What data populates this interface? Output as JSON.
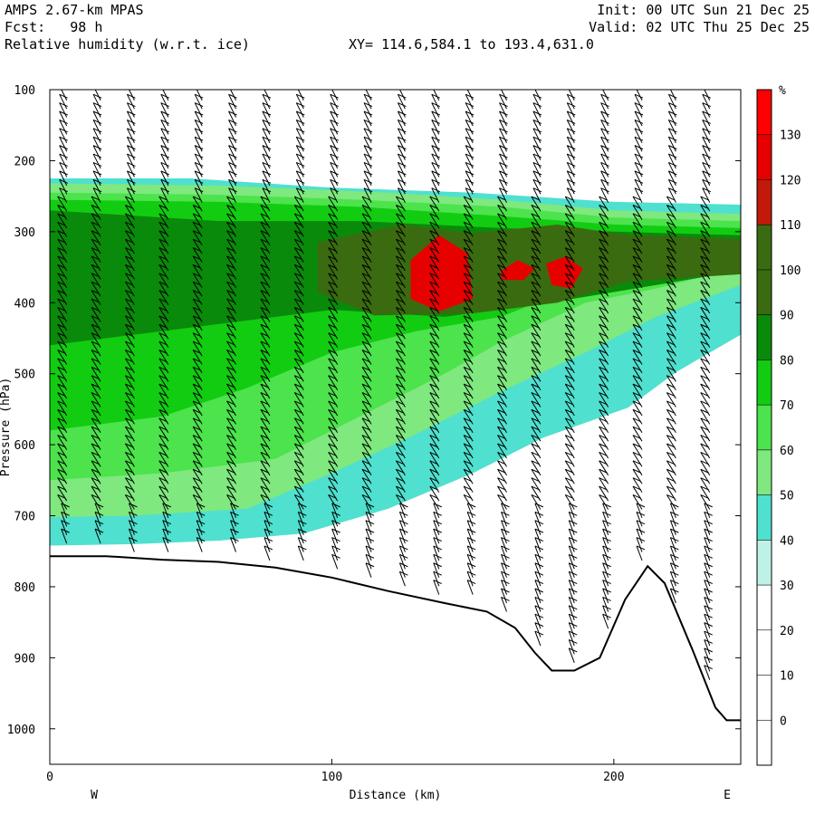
{
  "header": {
    "model": "AMPS 2.67-km MPAS",
    "fcst": "Fcst:   98 h",
    "field": "Relative humidity (w.r.t. ice)",
    "xy": "XY= 114.6,584.1 to 193.4,631.0",
    "init": "Init: 00 UTC Sun 21 Dec 25",
    "valid": "Valid: 02 UTC Thu 25 Dec 25"
  },
  "chart_data": {
    "type": "heatmap",
    "title": "Relative humidity (w.r.t. ice)",
    "xlabel": "Distance (km)",
    "ylabel": "Pressure (hPa)",
    "xlim": [
      0,
      245
    ],
    "ylim": [
      1050,
      100
    ],
    "x_ticks": [
      0,
      100,
      200
    ],
    "y_ticks": [
      100,
      200,
      300,
      400,
      500,
      600,
      700,
      800,
      900,
      1000
    ],
    "x_end_labels": {
      "left": "W",
      "right": "E"
    },
    "colorbar": {
      "unit": "%",
      "levels": [
        0,
        10,
        20,
        30,
        40,
        50,
        60,
        70,
        80,
        90,
        100,
        110,
        120,
        130
      ],
      "colors": [
        "#ffffff",
        "#ffffff",
        "#ffffff",
        "#ffffff",
        "#bff2e6",
        "#4fe0cf",
        "#7fe87f",
        "#4ce34c",
        "#12cc12",
        "#0a8a0a",
        "#3b6b10",
        "#3b6b10",
        "#c21a0a",
        "#e60000",
        "#ff0000"
      ]
    },
    "terrain_pressure_hPa": [
      [
        0,
        757
      ],
      [
        20,
        757
      ],
      [
        40,
        762
      ],
      [
        60,
        765
      ],
      [
        80,
        773
      ],
      [
        100,
        787
      ],
      [
        120,
        806
      ],
      [
        140,
        823
      ],
      [
        155,
        835
      ],
      [
        165,
        858
      ],
      [
        172,
        893
      ],
      [
        178,
        918
      ],
      [
        186,
        918
      ],
      [
        195,
        900
      ],
      [
        204,
        818
      ],
      [
        212,
        771
      ],
      [
        218,
        795
      ],
      [
        228,
        890
      ],
      [
        236,
        970
      ],
      [
        240,
        988
      ],
      [
        245,
        988
      ]
    ],
    "rh_layers": [
      {
        "level": 40,
        "polygon": [
          [
            0,
            225
          ],
          [
            50,
            225
          ],
          [
            100,
            238
          ],
          [
            150,
            245
          ],
          [
            200,
            258
          ],
          [
            245,
            262
          ],
          [
            245,
            445
          ],
          [
            222,
            498
          ],
          [
            205,
            548
          ],
          [
            175,
            590
          ],
          [
            150,
            640
          ],
          [
            120,
            690
          ],
          [
            90,
            725
          ],
          [
            60,
            735
          ],
          [
            30,
            740
          ],
          [
            0,
            742
          ]
        ]
      },
      {
        "level": 50,
        "polygon": [
          [
            0,
            232
          ],
          [
            60,
            235
          ],
          [
            120,
            245
          ],
          [
            160,
            255
          ],
          [
            200,
            270
          ],
          [
            245,
            275
          ],
          [
            245,
            375
          ],
          [
            215,
            420
          ],
          [
            190,
            470
          ],
          [
            160,
            525
          ],
          [
            130,
            585
          ],
          [
            100,
            640
          ],
          [
            70,
            690
          ],
          [
            30,
            700
          ],
          [
            0,
            702
          ]
        ]
      },
      {
        "level": 60,
        "polygon": [
          [
            0,
            245
          ],
          [
            60,
            248
          ],
          [
            110,
            255
          ],
          [
            160,
            265
          ],
          [
            200,
            280
          ],
          [
            245,
            285
          ],
          [
            245,
            350
          ],
          [
            215,
            380
          ],
          [
            190,
            400
          ],
          [
            160,
            455
          ],
          [
            140,
            500
          ],
          [
            110,
            560
          ],
          [
            80,
            620
          ],
          [
            40,
            640
          ],
          [
            0,
            650
          ]
        ]
      },
      {
        "level": 70,
        "polygon": [
          [
            0,
            255
          ],
          [
            60,
            258
          ],
          [
            110,
            265
          ],
          [
            160,
            278
          ],
          [
            200,
            290
          ],
          [
            245,
            295
          ],
          [
            245,
            340
          ],
          [
            215,
            360
          ],
          [
            185,
            380
          ],
          [
            160,
            420
          ],
          [
            130,
            440
          ],
          [
            100,
            470
          ],
          [
            70,
            520
          ],
          [
            40,
            560
          ],
          [
            0,
            580
          ]
        ]
      },
      {
        "level": 80,
        "polygon": [
          [
            0,
            270
          ],
          [
            60,
            285
          ],
          [
            110,
            285
          ],
          [
            160,
            295
          ],
          [
            200,
            300
          ],
          [
            245,
            305
          ],
          [
            245,
            355
          ],
          [
            215,
            375
          ],
          [
            185,
            395
          ],
          [
            140,
            420
          ],
          [
            100,
            410
          ],
          [
            60,
            430
          ],
          [
            20,
            450
          ],
          [
            0,
            460
          ]
        ]
      },
      {
        "level": 90,
        "polygon": [
          [
            95,
            315
          ],
          [
            125,
            290
          ],
          [
            150,
            302
          ],
          [
            180,
            290
          ],
          [
            205,
            305
          ],
          [
            245,
            310
          ],
          [
            245,
            360
          ],
          [
            205,
            370
          ],
          [
            180,
            400
          ],
          [
            150,
            415
          ],
          [
            115,
            418
          ],
          [
            95,
            385
          ]
        ]
      },
      {
        "level": 100,
        "polygon": [
          [
            105,
            330
          ],
          [
            135,
            300
          ],
          [
            150,
            320
          ],
          [
            165,
            305
          ],
          [
            185,
            300
          ],
          [
            190,
            330
          ],
          [
            185,
            385
          ],
          [
            165,
            390
          ],
          [
            140,
            405
          ],
          [
            112,
            408
          ],
          [
            105,
            370
          ]
        ]
      },
      {
        "level": 120,
        "polygon": [
          [
            128,
            340
          ],
          [
            138,
            305
          ],
          [
            148,
            330
          ],
          [
            150,
            395
          ],
          [
            138,
            412
          ],
          [
            128,
            395
          ]
        ]
      },
      {
        "level": 120,
        "polygon": [
          [
            160,
            355
          ],
          [
            166,
            340
          ],
          [
            172,
            352
          ],
          [
            168,
            368
          ],
          [
            160,
            368
          ]
        ]
      },
      {
        "level": 120,
        "polygon": [
          [
            176,
            345
          ],
          [
            183,
            335
          ],
          [
            189,
            352
          ],
          [
            185,
            380
          ],
          [
            178,
            375
          ]
        ]
      }
    ],
    "wind_profile_x_km": [
      6,
      18,
      30,
      42,
      54,
      66,
      78,
      90,
      102,
      114,
      126,
      138,
      150,
      162,
      174,
      186,
      198,
      210,
      222,
      234
    ]
  }
}
